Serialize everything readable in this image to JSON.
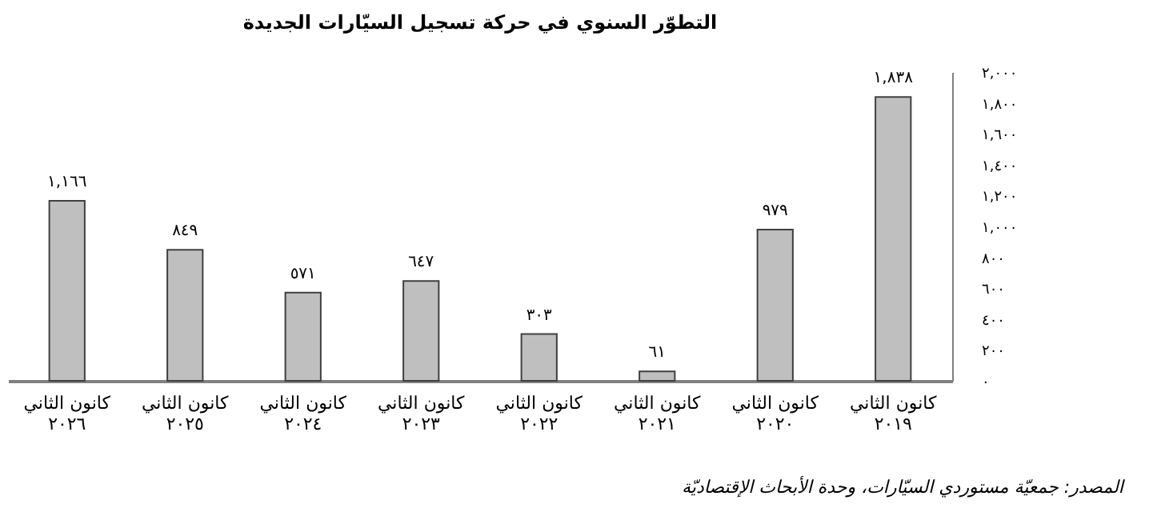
{
  "chart_data": {
    "type": "bar",
    "title": "التطوّر السنوي في حركة تسجيل السيّارات الجديدة",
    "categories": [
      "كانون الثاني\n٢٠٢٦",
      "كانون الثاني\n٢٠٢٥",
      "كانون الثاني\n٢٠٢٤",
      "كانون الثاني\n٢٠٢٣",
      "كانون الثاني\n٢٠٢٢",
      "كانون الثاني\n٢٠٢١",
      "كانون الثاني\n٢٠٢٠",
      "كانون الثاني\n٢٠١٩"
    ],
    "values": [
      1166,
      849,
      571,
      647,
      303,
      61,
      979,
      1838
    ],
    "value_labels": [
      "١,١٦٦",
      "٨٤٩",
      "٥٧١",
      "٦٤٧",
      "٣٠٣",
      "٦١",
      "٩٧٩",
      "١,٨٣٨"
    ],
    "color": "#bfbfbf",
    "ylim": [
      0,
      2000
    ],
    "yticks": [
      {
        "value": 0,
        "label": "٠"
      },
      {
        "value": 200,
        "label": "٢٠٠"
      },
      {
        "value": 400,
        "label": "٤٠٠"
      },
      {
        "value": 600,
        "label": "٦٠٠"
      },
      {
        "value": 800,
        "label": "٨٠٠"
      },
      {
        "value": 1000,
        "label": "١,٠٠٠"
      },
      {
        "value": 1200,
        "label": "١,٢٠٠"
      },
      {
        "value": 1400,
        "label": "١,٤٠٠"
      },
      {
        "value": 1600,
        "label": "١,٦٠٠"
      },
      {
        "value": 1800,
        "label": "١,٨٠٠"
      },
      {
        "value": 2000,
        "label": "٢,٠٠٠"
      }
    ],
    "grid": false,
    "annotations": [
      "المصدر: جمعيّة مستوردي السيّارات، وحدة الأبحاث الإقتصاديّة"
    ]
  }
}
